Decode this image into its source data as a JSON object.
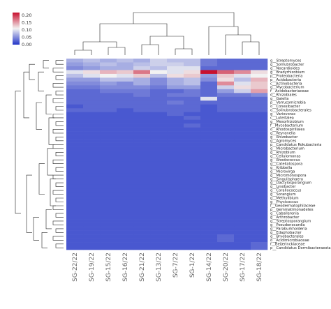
{
  "chart_data": {
    "type": "heatmap",
    "title": "",
    "xlabel": "",
    "ylabel": "",
    "columns": [
      "SG-22/22",
      "SG-19/22",
      "SG-15/22",
      "SG-16/22",
      "SG-21/22",
      "SG-13/22",
      "SG-7/22",
      "SG-1/22",
      "SG-14/22",
      "SG-20/22",
      "SG-17/22",
      "SG-18/22"
    ],
    "rows": [
      "g__Streptomyces",
      "g__Solirubrobacter",
      "g__Nocardioides",
      "g__Bradyrhizobium",
      "p__Proteobacteria",
      "p__Acidobacteria",
      "c__Actinobacteria",
      "g__Mycobacterium",
      "f__Acidobacteriaceae",
      "o__Rhizobiales",
      "g__Gaiella",
      "p__Verrucomicrobia",
      "o__Conexibacter",
      "o__Solirubrobacterales",
      "g__Variovorax",
      "c__Luteitalea",
      "g__Mesorhizobium",
      "f__Mycobacterium",
      "o__Rhodospirillales",
      "g__Reyranella",
      "g__Rhizobacter",
      "g__Agromyces",
      "p__Candidatus Rokubacteria",
      "g__Microbacterium",
      "g__Rhizobium",
      "g__Cellulomonas",
      "g__Rhodococcus",
      "g__Catellatospora",
      "g__Kribbella",
      "g__Microvirga",
      "g__Micromonospora",
      "g__Singulisphaera",
      "g__Dactylosporangium",
      "g__Lysobacter",
      "g__Corallococcus",
      "g__Sorangium",
      "g__Methylibium",
      "g__Phycicoccus",
      "f__Geodermatophilaceae",
      "p__Gemmatimonadetes",
      "g__Caballeronia",
      "g__Arthrobacter",
      "g__Streptosporangium",
      "g__Pseudonocardia",
      "g__Paraburkholderia",
      "g__Edaphobacter",
      "g__Bryobacterales",
      "o__Acidimicrobiaceae",
      "f__Beijerinckiaceae",
      "p__Candidatus Dormibacteraeota"
    ],
    "values": [
      [
        0.07,
        0.08,
        0.07,
        0.08,
        0.07,
        0.09,
        0.08,
        0.08,
        0.04,
        0.03,
        0.03,
        0.03
      ],
      [
        0.06,
        0.07,
        0.08,
        0.07,
        0.08,
        0.09,
        0.09,
        0.08,
        0.04,
        0.03,
        0.03,
        0.03
      ],
      [
        0.05,
        0.06,
        0.07,
        0.07,
        0.09,
        0.08,
        0.1,
        0.1,
        0.03,
        0.03,
        0.03,
        0.03
      ],
      [
        0.1,
        0.12,
        0.14,
        0.13,
        0.17,
        0.11,
        0.1,
        0.12,
        0.22,
        0.18,
        0.16,
        0.12
      ],
      [
        0.08,
        0.1,
        0.11,
        0.1,
        0.13,
        0.08,
        0.12,
        0.13,
        0.06,
        0.13,
        0.1,
        0.11
      ],
      [
        0.06,
        0.06,
        0.08,
        0.08,
        0.07,
        0.05,
        0.07,
        0.08,
        0.05,
        0.12,
        0.08,
        0.14
      ],
      [
        0.05,
        0.05,
        0.06,
        0.05,
        0.07,
        0.05,
        0.07,
        0.08,
        0.03,
        0.16,
        0.1,
        0.13
      ],
      [
        0.04,
        0.04,
        0.05,
        0.05,
        0.05,
        0.04,
        0.06,
        0.06,
        0.03,
        0.09,
        0.12,
        0.13
      ],
      [
        0.03,
        0.03,
        0.04,
        0.04,
        0.04,
        0.03,
        0.03,
        0.04,
        0.03,
        0.06,
        0.09,
        0.15
      ],
      [
        0.03,
        0.03,
        0.03,
        0.03,
        0.04,
        0.03,
        0.04,
        0.04,
        0.03,
        0.04,
        0.04,
        0.05
      ],
      [
        0.03,
        0.03,
        0.03,
        0.03,
        0.03,
        0.03,
        0.03,
        0.03,
        0.1,
        0.03,
        0.03,
        0.03
      ],
      [
        0.03,
        0.03,
        0.03,
        0.03,
        0.03,
        0.03,
        0.04,
        0.03,
        0.03,
        0.03,
        0.03,
        0.03
      ],
      [
        0.02,
        0.03,
        0.03,
        0.03,
        0.03,
        0.03,
        0.03,
        0.03,
        0.02,
        0.03,
        0.03,
        0.03
      ],
      [
        0.03,
        0.03,
        0.03,
        0.02,
        0.03,
        0.03,
        0.03,
        0.03,
        0.02,
        0.03,
        0.03,
        0.03
      ],
      [
        0.02,
        0.02,
        0.02,
        0.02,
        0.02,
        0.02,
        0.03,
        0.02,
        0.02,
        0.02,
        0.02,
        0.02
      ],
      [
        0.02,
        0.02,
        0.02,
        0.02,
        0.02,
        0.02,
        0.02,
        0.03,
        0.02,
        0.02,
        0.02,
        0.02
      ],
      [
        0.02,
        0.02,
        0.02,
        0.02,
        0.02,
        0.02,
        0.02,
        0.02,
        0.02,
        0.02,
        0.02,
        0.02
      ],
      [
        0.02,
        0.02,
        0.02,
        0.02,
        0.02,
        0.02,
        0.02,
        0.03,
        0.02,
        0.02,
        0.02,
        0.02
      ],
      [
        0.02,
        0.02,
        0.02,
        0.02,
        0.02,
        0.02,
        0.02,
        0.02,
        0.02,
        0.02,
        0.02,
        0.02
      ],
      [
        0.02,
        0.02,
        0.02,
        0.02,
        0.02,
        0.02,
        0.02,
        0.02,
        0.02,
        0.02,
        0.02,
        0.02
      ],
      [
        0.02,
        0.02,
        0.02,
        0.02,
        0.02,
        0.02,
        0.02,
        0.02,
        0.02,
        0.02,
        0.02,
        0.02
      ],
      [
        0.02,
        0.02,
        0.02,
        0.02,
        0.02,
        0.02,
        0.02,
        0.02,
        0.02,
        0.02,
        0.02,
        0.02
      ],
      [
        0.02,
        0.02,
        0.02,
        0.02,
        0.02,
        0.02,
        0.02,
        0.02,
        0.02,
        0.02,
        0.02,
        0.02
      ],
      [
        0.02,
        0.02,
        0.02,
        0.02,
        0.02,
        0.02,
        0.02,
        0.02,
        0.02,
        0.02,
        0.02,
        0.02
      ],
      [
        0.02,
        0.02,
        0.02,
        0.02,
        0.02,
        0.02,
        0.02,
        0.02,
        0.02,
        0.02,
        0.02,
        0.02
      ],
      [
        0.02,
        0.02,
        0.02,
        0.02,
        0.02,
        0.02,
        0.02,
        0.02,
        0.02,
        0.02,
        0.02,
        0.02
      ],
      [
        0.02,
        0.02,
        0.02,
        0.02,
        0.02,
        0.02,
        0.02,
        0.02,
        0.02,
        0.02,
        0.02,
        0.02
      ],
      [
        0.02,
        0.02,
        0.02,
        0.02,
        0.02,
        0.02,
        0.02,
        0.02,
        0.02,
        0.02,
        0.02,
        0.02
      ],
      [
        0.02,
        0.02,
        0.02,
        0.02,
        0.02,
        0.02,
        0.02,
        0.02,
        0.02,
        0.02,
        0.02,
        0.02
      ],
      [
        0.02,
        0.02,
        0.02,
        0.02,
        0.02,
        0.02,
        0.02,
        0.02,
        0.02,
        0.02,
        0.02,
        0.02
      ],
      [
        0.02,
        0.02,
        0.02,
        0.02,
        0.02,
        0.02,
        0.02,
        0.02,
        0.02,
        0.02,
        0.02,
        0.02
      ],
      [
        0.02,
        0.02,
        0.02,
        0.02,
        0.02,
        0.02,
        0.02,
        0.02,
        0.02,
        0.02,
        0.02,
        0.02
      ],
      [
        0.02,
        0.02,
        0.02,
        0.02,
        0.02,
        0.02,
        0.02,
        0.02,
        0.02,
        0.02,
        0.02,
        0.02
      ],
      [
        0.02,
        0.02,
        0.02,
        0.02,
        0.02,
        0.02,
        0.02,
        0.02,
        0.02,
        0.02,
        0.02,
        0.02
      ],
      [
        0.02,
        0.02,
        0.02,
        0.02,
        0.02,
        0.02,
        0.02,
        0.02,
        0.02,
        0.02,
        0.02,
        0.02
      ],
      [
        0.02,
        0.02,
        0.02,
        0.02,
        0.02,
        0.02,
        0.02,
        0.02,
        0.02,
        0.02,
        0.02,
        0.02
      ],
      [
        0.02,
        0.02,
        0.02,
        0.02,
        0.02,
        0.02,
        0.02,
        0.02,
        0.02,
        0.02,
        0.02,
        0.02
      ],
      [
        0.02,
        0.02,
        0.02,
        0.02,
        0.02,
        0.02,
        0.02,
        0.02,
        0.02,
        0.02,
        0.02,
        0.02
      ],
      [
        0.02,
        0.02,
        0.02,
        0.02,
        0.02,
        0.02,
        0.02,
        0.02,
        0.02,
        0.02,
        0.02,
        0.02
      ],
      [
        0.02,
        0.02,
        0.02,
        0.02,
        0.02,
        0.02,
        0.02,
        0.02,
        0.02,
        0.02,
        0.02,
        0.02
      ],
      [
        0.02,
        0.02,
        0.02,
        0.02,
        0.02,
        0.02,
        0.02,
        0.02,
        0.02,
        0.02,
        0.02,
        0.02
      ],
      [
        0.02,
        0.02,
        0.02,
        0.02,
        0.02,
        0.02,
        0.02,
        0.02,
        0.02,
        0.02,
        0.02,
        0.02
      ],
      [
        0.02,
        0.02,
        0.02,
        0.02,
        0.02,
        0.02,
        0.02,
        0.02,
        0.02,
        0.02,
        0.02,
        0.02
      ],
      [
        0.02,
        0.02,
        0.02,
        0.02,
        0.02,
        0.02,
        0.02,
        0.02,
        0.02,
        0.02,
        0.02,
        0.02
      ],
      [
        0.02,
        0.02,
        0.02,
        0.02,
        0.02,
        0.02,
        0.02,
        0.02,
        0.02,
        0.02,
        0.02,
        0.02
      ],
      [
        0.02,
        0.02,
        0.02,
        0.02,
        0.02,
        0.02,
        0.02,
        0.02,
        0.02,
        0.02,
        0.02,
        0.02
      ],
      [
        0.02,
        0.02,
        0.02,
        0.02,
        0.02,
        0.02,
        0.02,
        0.02,
        0.02,
        0.03,
        0.02,
        0.02
      ],
      [
        0.02,
        0.02,
        0.02,
        0.02,
        0.02,
        0.02,
        0.02,
        0.02,
        0.02,
        0.03,
        0.02,
        0.02
      ],
      [
        0.02,
        0.02,
        0.02,
        0.02,
        0.02,
        0.02,
        0.02,
        0.02,
        0.02,
        0.02,
        0.02,
        0.03
      ],
      [
        0.02,
        0.02,
        0.02,
        0.02,
        0.02,
        0.02,
        0.02,
        0.02,
        0.02,
        0.02,
        0.02,
        0.03
      ]
    ],
    "colorscale": {
      "ticks": [
        "0.20",
        "0.15",
        "0.10",
        "0.05",
        "0.00"
      ],
      "range": [
        0,
        0.22
      ],
      "low_color": "#2436c8",
      "mid_color": "#f2f2f2",
      "high_color": "#c8102e"
    },
    "grid": false,
    "legend_position": "top-left"
  }
}
